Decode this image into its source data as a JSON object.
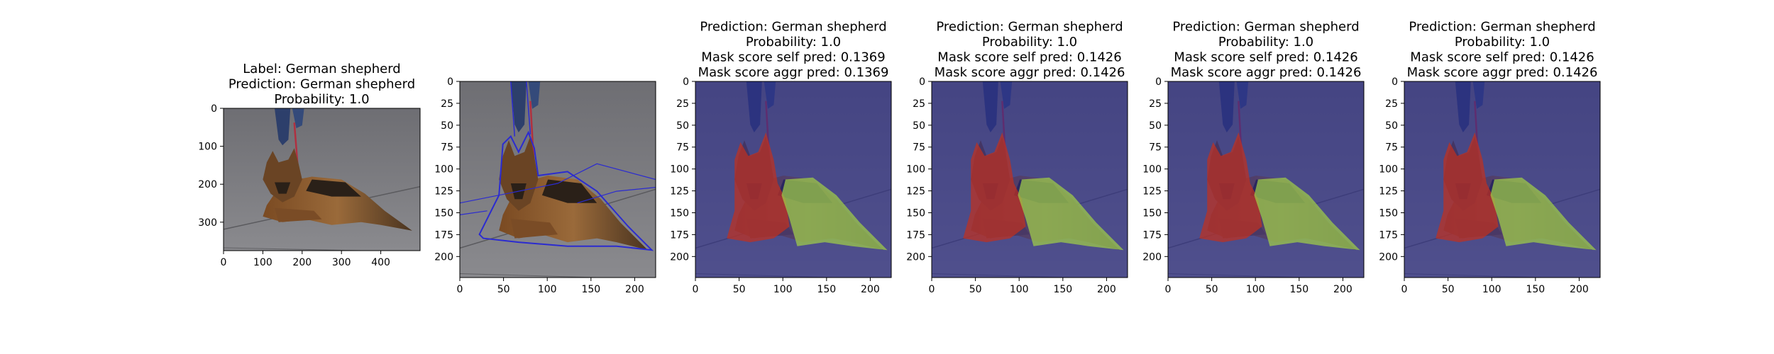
{
  "panels": [
    {
      "id": "original",
      "kind": "photo",
      "title_lines": [
        "Label: German shepherd",
        "Prediction: German shepherd",
        "Probability: 1.0"
      ],
      "x_ticks": [
        "0",
        "100",
        "200",
        "300",
        "400"
      ],
      "y_ticks": [
        "0",
        "100",
        "200",
        "300"
      ],
      "x_range": [
        0,
        500
      ],
      "y_range": [
        0,
        375
      ],
      "x_tick_values": [
        0,
        100,
        200,
        300,
        400
      ],
      "y_tick_values": [
        0,
        100,
        200,
        300
      ]
    },
    {
      "id": "contour",
      "kind": "contour",
      "title_lines": [],
      "x_ticks": [
        "0",
        "50",
        "100",
        "150",
        "200"
      ],
      "y_ticks": [
        "0",
        "25",
        "50",
        "75",
        "100",
        "125",
        "150",
        "175",
        "200"
      ],
      "x_range": [
        0,
        224
      ],
      "y_range": [
        0,
        224
      ],
      "x_tick_values": [
        0,
        50,
        100,
        150,
        200
      ],
      "y_tick_values": [
        0,
        25,
        50,
        75,
        100,
        125,
        150,
        175,
        200
      ]
    },
    {
      "id": "mask-1",
      "kind": "mask",
      "title_lines": [
        "Prediction: German shepherd",
        "Probability: 1.0",
        "Mask score self pred: 0.1369",
        "Mask score aggr pred: 0.1369"
      ],
      "x_ticks": [
        "0",
        "50",
        "100",
        "150",
        "200"
      ],
      "y_ticks": [
        "0",
        "25",
        "50",
        "75",
        "100",
        "125",
        "150",
        "175",
        "200"
      ],
      "x_range": [
        0,
        224
      ],
      "y_range": [
        0,
        224
      ],
      "x_tick_values": [
        0,
        50,
        100,
        150,
        200
      ],
      "y_tick_values": [
        0,
        25,
        50,
        75,
        100,
        125,
        150,
        175,
        200
      ]
    },
    {
      "id": "mask-2",
      "kind": "mask",
      "title_lines": [
        "Prediction: German shepherd",
        "Probability: 1.0",
        "Mask score self pred: 0.1426",
        "Mask score aggr pred: 0.1426"
      ],
      "x_ticks": [
        "0",
        "50",
        "100",
        "150",
        "200"
      ],
      "y_ticks": [
        "0",
        "25",
        "50",
        "75",
        "100",
        "125",
        "150",
        "175",
        "200"
      ],
      "x_range": [
        0,
        224
      ],
      "y_range": [
        0,
        224
      ],
      "x_tick_values": [
        0,
        50,
        100,
        150,
        200
      ],
      "y_tick_values": [
        0,
        25,
        50,
        75,
        100,
        125,
        150,
        175,
        200
      ]
    },
    {
      "id": "mask-3",
      "kind": "mask",
      "title_lines": [
        "Prediction: German shepherd",
        "Probability: 1.0",
        "Mask score self pred: 0.1426",
        "Mask score aggr pred: 0.1426"
      ],
      "x_ticks": [
        "0",
        "50",
        "100",
        "150",
        "200"
      ],
      "y_ticks": [
        "0",
        "25",
        "50",
        "75",
        "100",
        "125",
        "150",
        "175",
        "200"
      ],
      "x_range": [
        0,
        224
      ],
      "y_range": [
        0,
        224
      ],
      "x_tick_values": [
        0,
        50,
        100,
        150,
        200
      ],
      "y_tick_values": [
        0,
        25,
        50,
        75,
        100,
        125,
        150,
        175,
        200
      ]
    },
    {
      "id": "mask-4",
      "kind": "mask",
      "title_lines": [
        "Prediction: German shepherd",
        "Probability: 1.0",
        "Mask score self pred: 0.1426",
        "Mask score aggr pred: 0.1426"
      ],
      "x_ticks": [
        "0",
        "50",
        "100",
        "150",
        "200"
      ],
      "y_ticks": [
        "0",
        "25",
        "50",
        "75",
        "100",
        "125",
        "150",
        "175",
        "200"
      ],
      "x_range": [
        0,
        224
      ],
      "y_range": [
        0,
        224
      ],
      "x_tick_values": [
        0,
        50,
        100,
        150,
        200
      ],
      "y_tick_values": [
        0,
        25,
        50,
        75,
        100,
        125,
        150,
        175,
        200
      ]
    }
  ],
  "colors": {
    "ground": "#7a7a7e",
    "ground_dark": "#5d5d62",
    "dog_tan": "#8a5a2e",
    "dog_dark": "#2a2018",
    "contour": "#2b2bd0",
    "mask_background": "#2c2c8c",
    "mask_head": "#c0301f",
    "mask_body": "#9ec94a",
    "jeans": "#2d3f6b"
  }
}
